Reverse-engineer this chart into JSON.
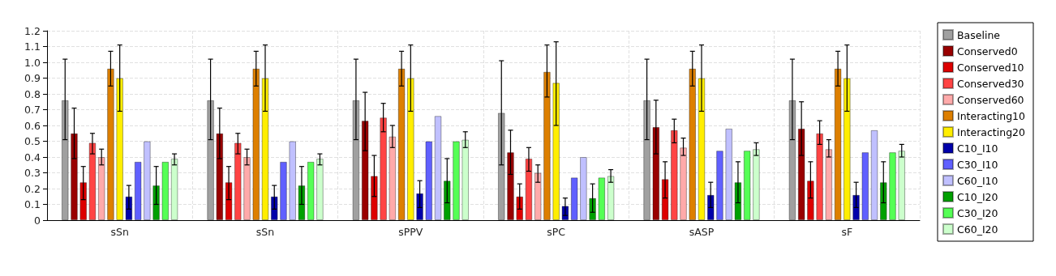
{
  "chart_data": {
    "type": "bar",
    "categories": [
      "sSn",
      "sSn",
      "sPPV",
      "sPC",
      "sASP",
      "sF"
    ],
    "ylim": [
      0,
      1.2
    ],
    "yticks": [
      0,
      0.1,
      0.2,
      0.3,
      0.4,
      0.5,
      0.6,
      0.7,
      0.8,
      0.9,
      {
        "value": 1,
        "label": "1.0"
      },
      1.1,
      1.2
    ],
    "grid": true,
    "legend": "right",
    "series": [
      {
        "name": "Baseline",
        "color": "#a0a0a0",
        "values": [
          0.76,
          0.76,
          0.76,
          0.68,
          0.76,
          0.76
        ],
        "errors": [
          [
            0.51,
            1.02
          ],
          [
            0.51,
            1.02
          ],
          [
            0.51,
            1.02
          ],
          [
            0.35,
            1.01
          ],
          [
            0.51,
            1.02
          ],
          [
            0.51,
            1.02
          ]
        ]
      },
      {
        "name": "Conserved0",
        "color": "#990000",
        "values": [
          0.55,
          0.55,
          0.63,
          0.43,
          0.59,
          0.58
        ],
        "errors": [
          [
            0.39,
            0.71
          ],
          [
            0.39,
            0.71
          ],
          [
            0.44,
            0.81
          ],
          [
            0.29,
            0.57
          ],
          [
            0.42,
            0.76
          ],
          [
            0.41,
            0.75
          ]
        ]
      },
      {
        "name": "Conserved10",
        "color": "#dd0000",
        "values": [
          0.24,
          0.24,
          0.28,
          0.15,
          0.26,
          0.25
        ],
        "errors": [
          [
            0.13,
            0.34
          ],
          [
            0.13,
            0.34
          ],
          [
            0.15,
            0.41
          ],
          [
            0.07,
            0.23
          ],
          [
            0.14,
            0.37
          ],
          [
            0.14,
            0.37
          ]
        ]
      },
      {
        "name": "Conserved30",
        "color": "#ff4444",
        "values": [
          0.49,
          0.49,
          0.65,
          0.39,
          0.57,
          0.55
        ],
        "errors": [
          [
            0.42,
            0.55
          ],
          [
            0.42,
            0.55
          ],
          [
            0.56,
            0.74
          ],
          [
            0.31,
            0.46
          ],
          [
            0.49,
            0.64
          ],
          [
            0.48,
            0.63
          ]
        ]
      },
      {
        "name": "Conserved60",
        "color": "#ffaaaa",
        "values": [
          0.4,
          0.4,
          0.53,
          0.3,
          0.46,
          0.45
        ],
        "errors": [
          [
            0.35,
            0.45
          ],
          [
            0.35,
            0.45
          ],
          [
            0.46,
            0.6
          ],
          [
            0.24,
            0.35
          ],
          [
            0.41,
            0.52
          ],
          [
            0.4,
            0.51
          ]
        ]
      },
      {
        "name": "Interacting10",
        "color": "#dd7f00",
        "values": [
          0.96,
          0.96,
          0.96,
          0.94,
          0.96,
          0.96
        ],
        "errors": [
          [
            0.85,
            1.07
          ],
          [
            0.85,
            1.07
          ],
          [
            0.85,
            1.07
          ],
          [
            0.78,
            1.11
          ],
          [
            0.85,
            1.07
          ],
          [
            0.85,
            1.07
          ]
        ]
      },
      {
        "name": "Interacting20",
        "color": "#ffee00",
        "values": [
          0.9,
          0.9,
          0.9,
          0.87,
          0.9,
          0.9
        ],
        "errors": [
          [
            0.69,
            1.11
          ],
          [
            0.69,
            1.11
          ],
          [
            0.69,
            1.11
          ],
          [
            0.6,
            1.13
          ],
          [
            0.69,
            1.11
          ],
          [
            0.69,
            1.11
          ]
        ]
      },
      {
        "name": "C10_I10",
        "color": "#0000aa",
        "values": [
          0.15,
          0.15,
          0.17,
          0.09,
          0.16,
          0.16
        ],
        "errors": [
          [
            0.07,
            0.22
          ],
          [
            0.07,
            0.22
          ],
          [
            0.08,
            0.25
          ],
          [
            0.03,
            0.14
          ],
          [
            0.08,
            0.24
          ],
          [
            0.08,
            0.24
          ]
        ]
      },
      {
        "name": "C30_I10",
        "color": "#6060ff",
        "values": [
          0.37,
          0.37,
          0.5,
          0.27,
          0.44,
          0.43
        ]
      },
      {
        "name": "C60_I10",
        "color": "#c0c0ff",
        "values": [
          0.5,
          0.5,
          0.66,
          0.4,
          0.58,
          0.57
        ]
      },
      {
        "name": "C10_I20",
        "color": "#00a000",
        "values": [
          0.22,
          0.22,
          0.25,
          0.14,
          0.24,
          0.24
        ],
        "errors": [
          [
            0.1,
            0.34
          ],
          [
            0.1,
            0.34
          ],
          [
            0.11,
            0.39
          ],
          [
            0.05,
            0.23
          ],
          [
            0.11,
            0.37
          ],
          [
            0.11,
            0.37
          ]
        ]
      },
      {
        "name": "C30_I20",
        "color": "#55ff55",
        "values": [
          0.37,
          0.37,
          0.5,
          0.27,
          0.44,
          0.43
        ]
      },
      {
        "name": "C60_I20",
        "color": "#ccffcc",
        "values": [
          0.39,
          0.39,
          0.51,
          0.28,
          0.45,
          0.44
        ],
        "errors": [
          [
            0.35,
            0.42
          ],
          [
            0.35,
            0.42
          ],
          [
            0.46,
            0.56
          ],
          [
            0.24,
            0.32
          ],
          [
            0.41,
            0.49
          ],
          [
            0.4,
            0.48
          ]
        ]
      }
    ]
  }
}
